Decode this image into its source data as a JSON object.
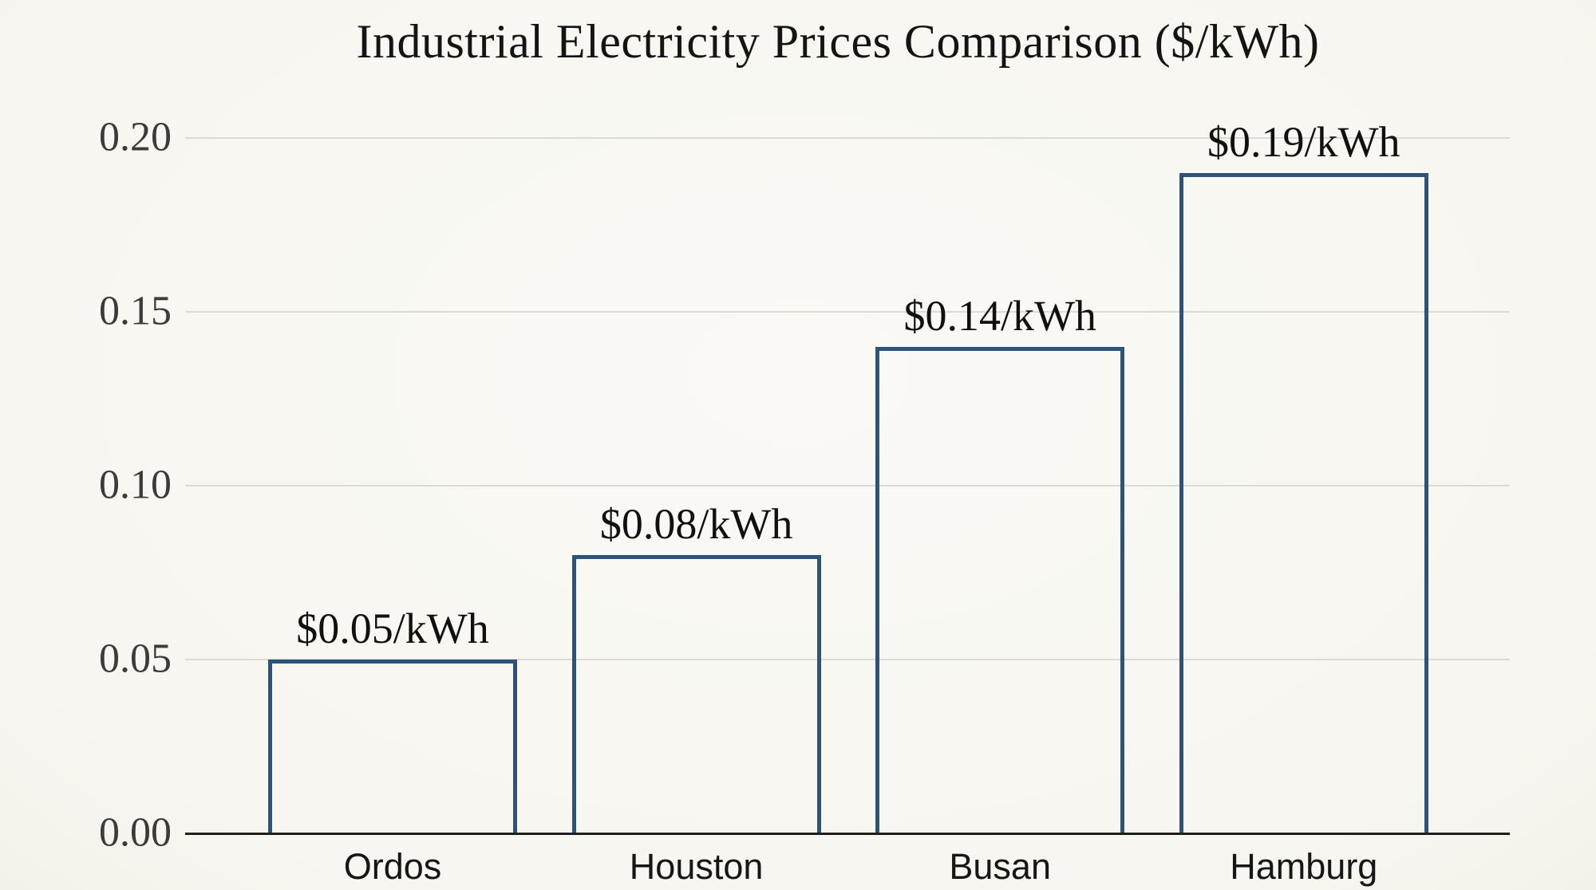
{
  "chart_data": {
    "type": "bar",
    "title": "Industrial Electricity Prices Comparison ($/kWh)",
    "categories": [
      "Ordos",
      "Houston",
      "Busan",
      "Hamburg"
    ],
    "values": [
      0.05,
      0.08,
      0.14,
      0.19
    ],
    "value_labels": [
      "$0.05/kWh",
      "$0.08/kWh",
      "$0.14/kWh",
      "$0.19/kWh"
    ],
    "xlabel": "",
    "ylabel": "",
    "ylim": [
      0,
      0.2
    ],
    "yticks": [
      0,
      0.05,
      0.1,
      0.15,
      0.2
    ],
    "ytick_labels": [
      "0.00",
      "0.05",
      "0.10",
      "0.15",
      "0.20"
    ],
    "grid": true,
    "legend": false,
    "bar_fill": "transparent",
    "colors": {
      "background": "#f7f6f0",
      "background_light": "#faf9f5",
      "bar_border": "#2d5478",
      "gridline": "#dbdad5",
      "axis_line": "#1e1e1e",
      "title_text": "#141414",
      "ytick_text": "#3b3b3b",
      "category_text": "#161616",
      "value_text": "#101010"
    }
  }
}
